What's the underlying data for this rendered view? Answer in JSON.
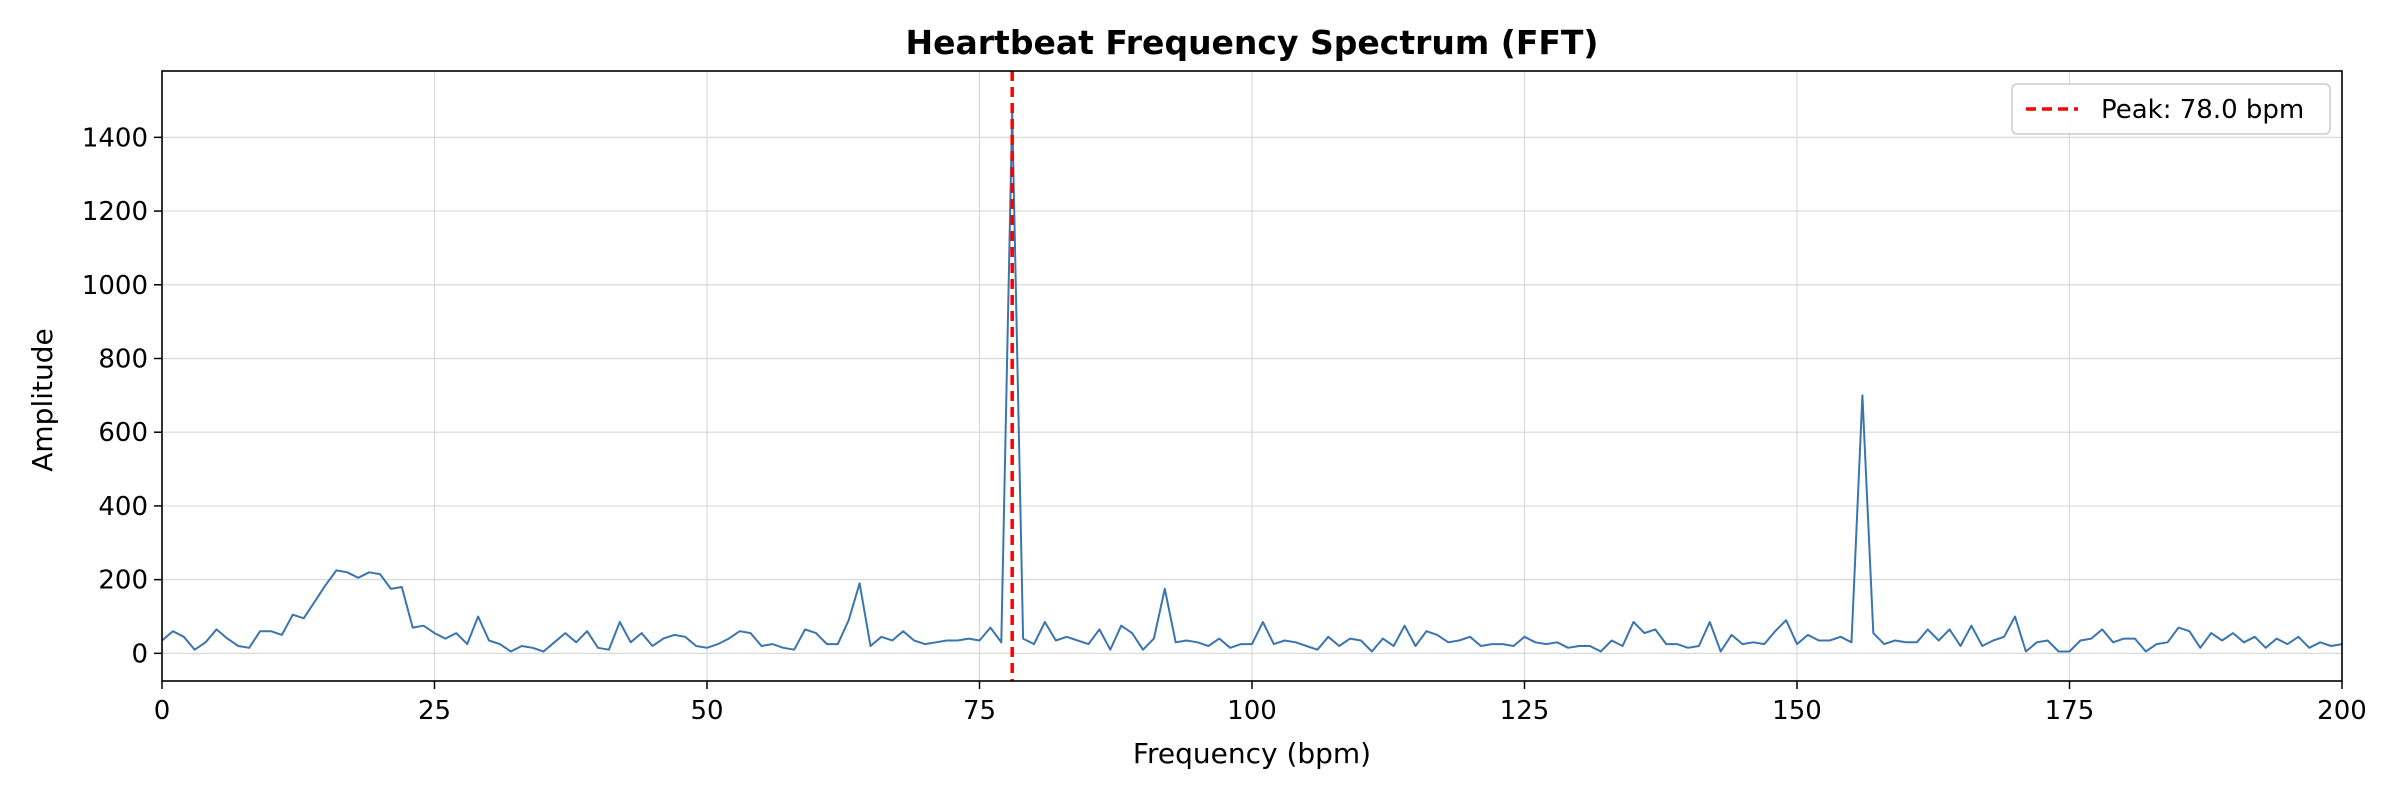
{
  "chart_data": {
    "type": "line",
    "title": "Heartbeat Frequency Spectrum (FFT)",
    "xlabel": "Frequency (bpm)",
    "ylabel": "Amplitude",
    "xlim": [
      0,
      200
    ],
    "ylim": [
      -75,
      1580
    ],
    "xticks": [
      0,
      25,
      50,
      75,
      100,
      125,
      150,
      175,
      200
    ],
    "yticks": [
      0,
      200,
      400,
      600,
      800,
      1000,
      1200,
      1400
    ],
    "grid": true,
    "legend_position": "top-right",
    "series": [
      {
        "color": "#3b75af",
        "x": [
          0,
          1,
          2,
          3,
          4,
          5,
          6,
          7,
          8,
          9,
          10,
          11,
          12,
          13,
          14,
          15,
          16,
          17,
          18,
          19,
          20,
          21,
          22,
          23,
          24,
          25,
          26,
          27,
          28,
          29,
          30,
          31,
          32,
          33,
          34,
          35,
          36,
          37,
          38,
          39,
          40,
          41,
          42,
          43,
          44,
          45,
          46,
          47,
          48,
          49,
          50,
          51,
          52,
          53,
          54,
          55,
          56,
          57,
          58,
          59,
          60,
          61,
          62,
          63,
          64,
          65,
          66,
          67,
          68,
          69,
          70,
          71,
          72,
          73,
          74,
          75,
          76,
          77,
          78,
          79,
          80,
          81,
          82,
          83,
          84,
          85,
          86,
          87,
          88,
          89,
          90,
          91,
          92,
          93,
          94,
          95,
          96,
          97,
          98,
          99,
          100,
          101,
          102,
          103,
          104,
          105,
          106,
          107,
          108,
          109,
          110,
          111,
          112,
          113,
          114,
          115,
          116,
          117,
          118,
          119,
          120,
          121,
          122,
          123,
          124,
          125,
          126,
          127,
          128,
          129,
          130,
          131,
          132,
          133,
          134,
          135,
          136,
          137,
          138,
          139,
          140,
          141,
          142,
          143,
          144,
          145,
          146,
          147,
          148,
          149,
          150,
          151,
          152,
          153,
          154,
          155,
          156,
          157,
          158,
          159,
          160,
          161,
          162,
          163,
          164,
          165,
          166,
          167,
          168,
          169,
          170,
          171,
          172,
          173,
          174,
          175,
          176,
          177,
          178,
          179,
          180,
          181,
          182,
          183,
          184,
          185,
          186,
          187,
          188,
          189,
          190,
          191,
          192,
          193,
          194,
          195,
          196,
          197,
          198,
          199,
          200
        ],
        "y": [
          35,
          60,
          45,
          10,
          30,
          65,
          40,
          20,
          15,
          60,
          60,
          50,
          105,
          95,
          140,
          185,
          225,
          220,
          205,
          220,
          215,
          175,
          180,
          70,
          75,
          55,
          40,
          55,
          25,
          100,
          35,
          25,
          5,
          20,
          15,
          5,
          30,
          55,
          30,
          60,
          15,
          10,
          85,
          30,
          55,
          20,
          40,
          50,
          45,
          20,
          15,
          25,
          40,
          60,
          55,
          20,
          25,
          15,
          10,
          65,
          55,
          25,
          25,
          90,
          190,
          20,
          45,
          35,
          60,
          35,
          25,
          30,
          35,
          35,
          40,
          35,
          70,
          30,
          1470,
          40,
          25,
          85,
          35,
          45,
          35,
          25,
          65,
          10,
          75,
          55,
          10,
          40,
          175,
          30,
          35,
          30,
          20,
          40,
          15,
          25,
          25,
          85,
          25,
          35,
          30,
          20,
          10,
          45,
          20,
          40,
          35,
          5,
          40,
          20,
          75,
          20,
          60,
          50,
          30,
          35,
          45,
          20,
          25,
          25,
          20,
          45,
          30,
          25,
          30,
          15,
          20,
          20,
          5,
          35,
          20,
          85,
          55,
          65,
          25,
          25,
          15,
          20,
          85,
          5,
          50,
          25,
          30,
          25,
          60,
          90,
          25,
          50,
          35,
          35,
          45,
          30,
          700,
          55,
          25,
          35,
          30,
          30,
          65,
          35,
          65,
          20,
          75,
          20,
          35,
          45,
          100,
          5,
          30,
          35,
          5,
          5,
          35,
          40,
          65,
          30,
          40,
          40,
          5,
          25,
          30,
          70,
          60,
          15,
          55,
          35,
          55,
          30,
          45,
          15,
          40,
          25,
          45,
          15,
          30,
          20,
          25
        ]
      }
    ],
    "peak": {
      "x": 78.0,
      "color": "#ff0000",
      "legend_label": "Peak: 78.0 bpm"
    }
  }
}
